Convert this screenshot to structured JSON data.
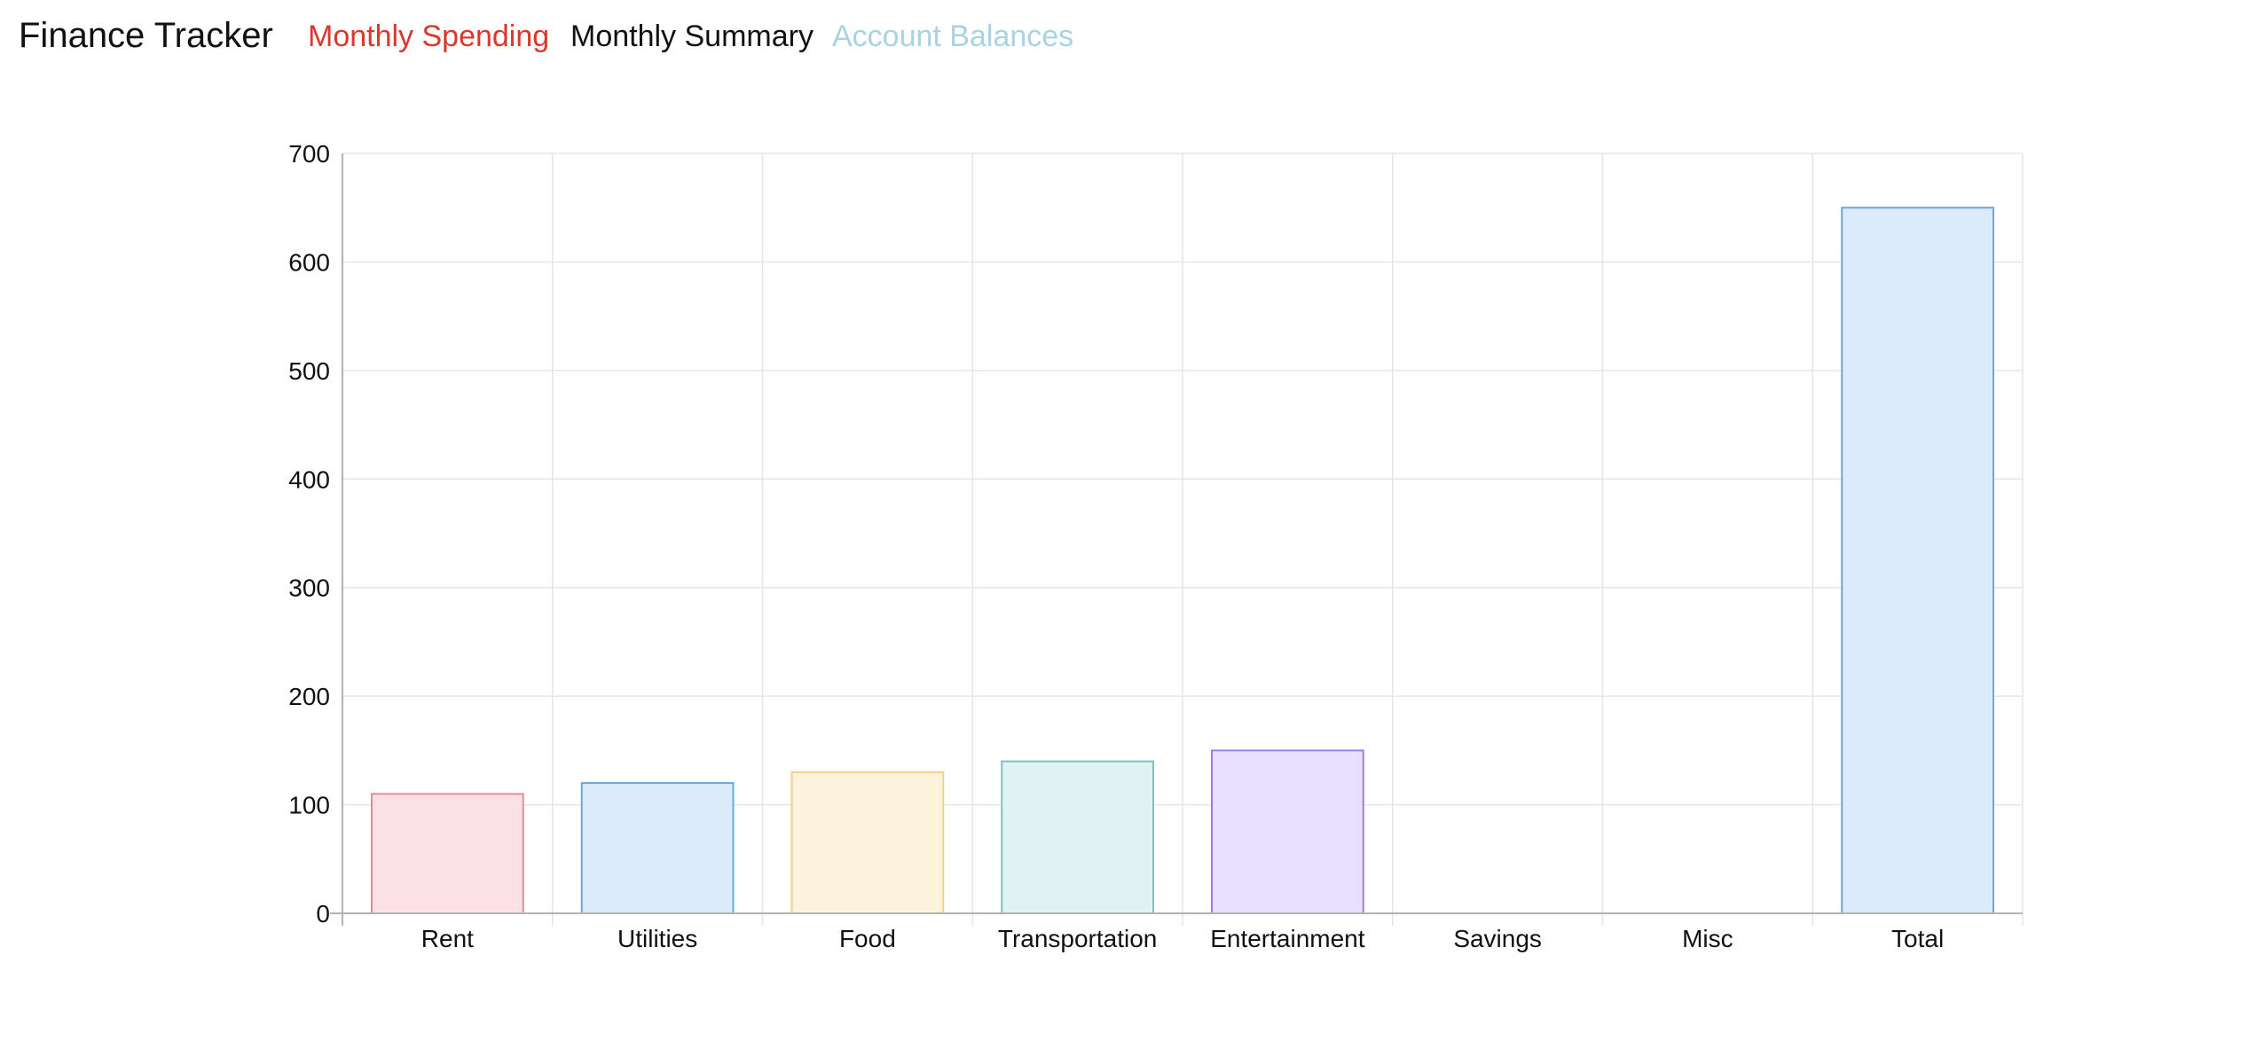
{
  "app": {
    "title": "Finance Tracker"
  },
  "nav": {
    "items": [
      {
        "label": "Monthly Spending",
        "color": "#d9382b",
        "active": true
      },
      {
        "label": "Monthly Summary",
        "color": "#111111",
        "active": false
      },
      {
        "label": "Account Balances",
        "color": "#a9d3e3",
        "active": false
      }
    ]
  },
  "chart_data": {
    "type": "bar",
    "categories": [
      "Rent",
      "Utilities",
      "Food",
      "Transportation",
      "Entertainment",
      "Savings",
      "Misc",
      "Total"
    ],
    "values": [
      110,
      120,
      130,
      140,
      150,
      0,
      0,
      650
    ],
    "ylim": [
      0,
      700
    ],
    "yticks": [
      0,
      100,
      200,
      300,
      400,
      500,
      600,
      700
    ],
    "grid": true,
    "legend": "none",
    "colors": {
      "fills": [
        "#fbe1e6",
        "#dcebfa",
        "#fdf3dc",
        "#e0f2f1",
        "#e8e0fe",
        "#f0f0f0",
        "#f0f0f0",
        "#dcebfa"
      ],
      "strokes": [
        "#e88a9c",
        "#6aa8dc",
        "#f0d08a",
        "#7cc3c6",
        "#9d7de0",
        "#cccccc",
        "#cccccc",
        "#6aa8dc"
      ],
      "grid": "#e6e6e6",
      "axis": "#b3b3b3"
    }
  }
}
